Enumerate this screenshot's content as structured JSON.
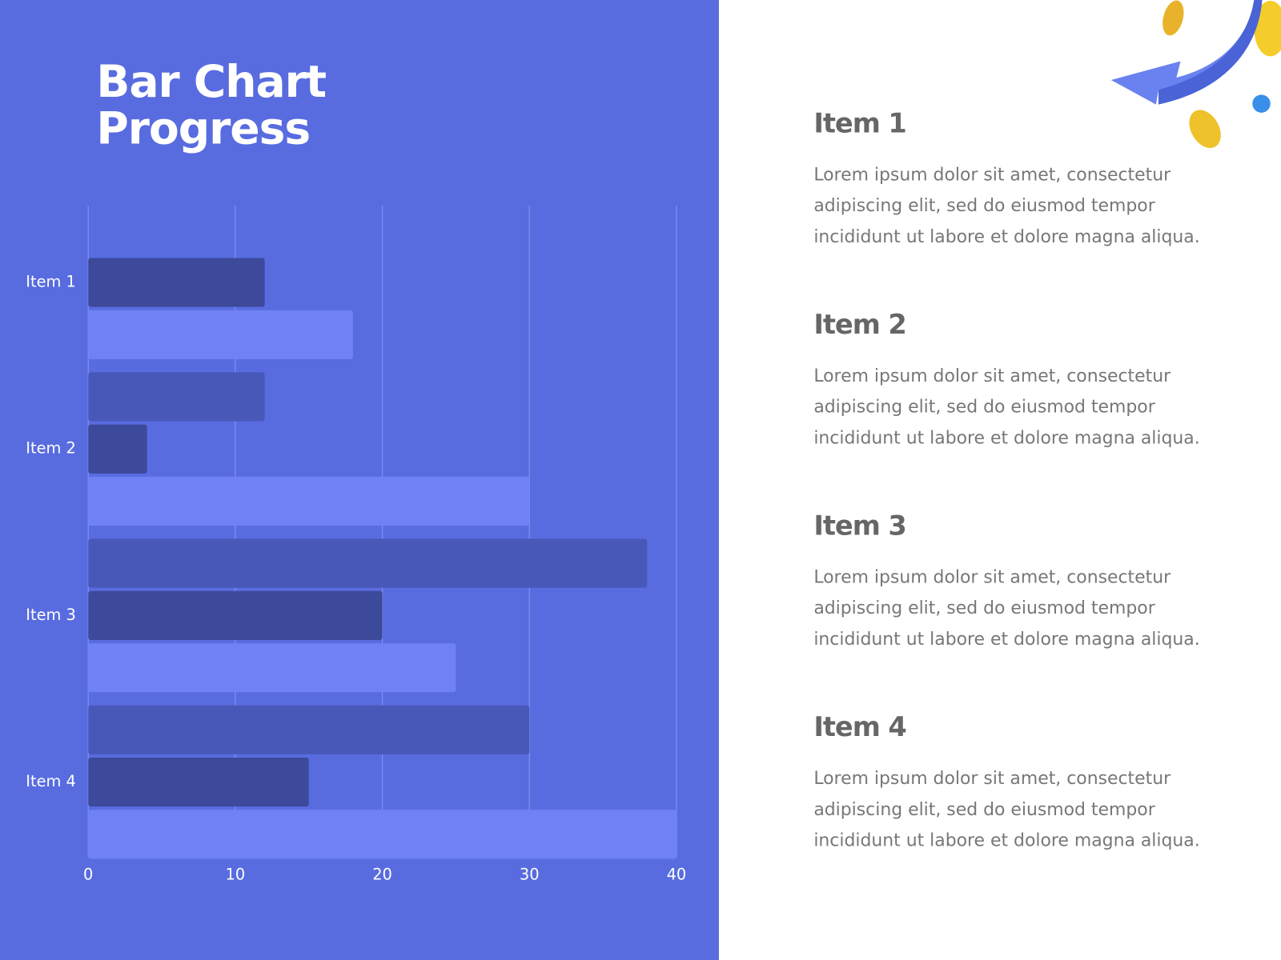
{
  "chart_data": {
    "type": "barh",
    "title": [
      "Bar Chart",
      "Progress"
    ],
    "categories": [
      "Item 1",
      "Item 2",
      "Item 3",
      "Item 4"
    ],
    "series": [
      {
        "color": "#4858b8",
        "values": [
          0,
          12,
          38,
          30
        ]
      },
      {
        "color": "#3d4a9b",
        "values": [
          12,
          4,
          20,
          15
        ]
      },
      {
        "color": "#7082f3",
        "values": [
          18,
          30,
          25,
          40
        ]
      }
    ],
    "xlim": [
      0,
      40
    ],
    "xticks": [
      0,
      10,
      20,
      30,
      40
    ],
    "grid": true
  },
  "panel": {
    "items": [
      {
        "heading": "Item 1",
        "text": [
          "Lorem ipsum dolor sit amet, consectetur",
          "adipiscing elit, sed do eiusmod tempor",
          "incididunt ut labore et dolore magna aliqua."
        ]
      },
      {
        "heading": "Item 2",
        "text": [
          "Lorem ipsum dolor sit amet, consectetur",
          "adipiscing elit, sed do eiusmod tempor",
          "incididunt ut labore et dolore magna aliqua."
        ]
      },
      {
        "heading": "Item 3",
        "text": [
          "Lorem ipsum dolor sit amet, consectetur",
          "adipiscing elit, sed do eiusmod tempor",
          "incididunt ut labore et dolore magna aliqua."
        ]
      },
      {
        "heading": "Item 4",
        "text": [
          "Lorem ipsum dolor sit amet, consectetur",
          "adipiscing elit, sed do eiusmod tempor",
          "incididunt ut labore et dolore magna aliqua."
        ]
      }
    ]
  }
}
